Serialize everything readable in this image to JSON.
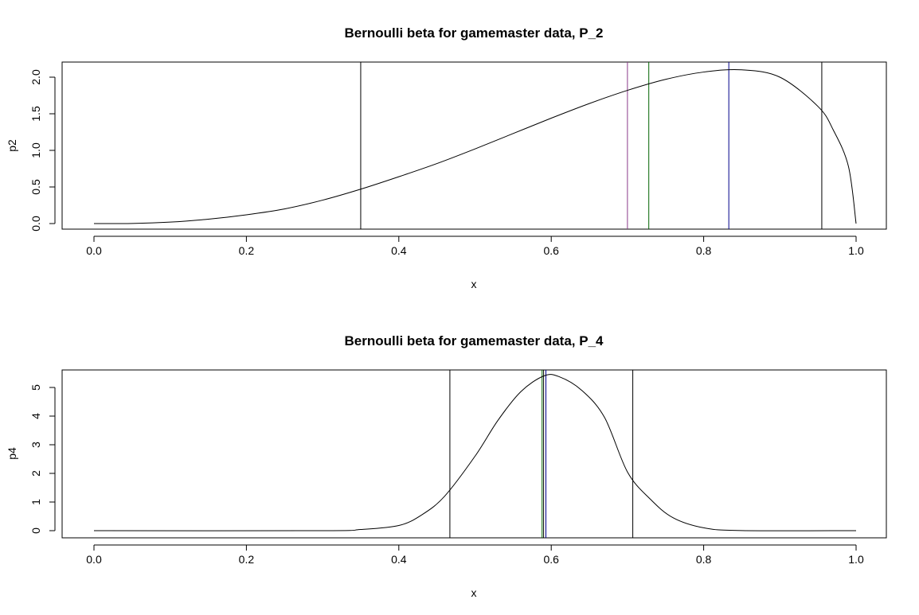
{
  "chart_data": [
    {
      "type": "line",
      "title": "Bernoulli beta for gamemaster data, P_2",
      "xlabel": "x",
      "ylabel": "p2",
      "xlim": [
        0,
        1
      ],
      "ylim": [
        0,
        2.1
      ],
      "x_ticks": [
        "0.0",
        "0.2",
        "0.4",
        "0.6",
        "0.8",
        "1.0"
      ],
      "y_ticks": [
        "0.0",
        "0.5",
        "1.0",
        "1.5",
        "2.0"
      ],
      "grid": false,
      "series": [
        {
          "color": "#000000",
          "x": [
            0,
            0.05,
            0.1,
            0.15,
            0.2,
            0.25,
            0.3,
            0.35,
            0.4,
            0.45,
            0.5,
            0.55,
            0.6,
            0.65,
            0.7,
            0.75,
            0.8,
            0.85,
            0.9,
            0.95,
            0.97,
            0.99,
            1.0
          ],
          "y": [
            0,
            0.002,
            0.02,
            0.06,
            0.12,
            0.2,
            0.32,
            0.47,
            0.64,
            0.82,
            1.02,
            1.23,
            1.44,
            1.64,
            1.82,
            1.97,
            2.07,
            2.1,
            2.0,
            1.6,
            1.28,
            0.78,
            0
          ]
        }
      ],
      "vlines": [
        {
          "x": 0.35,
          "color": "#000000"
        },
        {
          "x": 0.7,
          "color": "#8b3a8b"
        },
        {
          "x": 0.728,
          "color": "#006400"
        },
        {
          "x": 0.833,
          "color": "#00008b"
        },
        {
          "x": 0.955,
          "color": "#000000"
        }
      ]
    },
    {
      "type": "line",
      "title": "Bernoulli beta for gamemaster data, P_4",
      "xlabel": "x",
      "ylabel": "p4",
      "xlim": [
        0,
        1
      ],
      "ylim": [
        0,
        5.4
      ],
      "x_ticks": [
        "0.0",
        "0.2",
        "0.4",
        "0.6",
        "0.8",
        "1.0"
      ],
      "y_ticks": [
        "0",
        "1",
        "2",
        "3",
        "4",
        "5"
      ],
      "grid": false,
      "series": [
        {
          "color": "#000000",
          "x": [
            0,
            0.3,
            0.35,
            0.4,
            0.43,
            0.46,
            0.5,
            0.53,
            0.56,
            0.59,
            0.61,
            0.64,
            0.67,
            0.7,
            0.73,
            0.76,
            0.8,
            0.85,
            1.0
          ],
          "y": [
            0,
            0,
            0.04,
            0.18,
            0.55,
            1.2,
            2.6,
            3.85,
            4.85,
            5.4,
            5.38,
            4.9,
            3.95,
            2.05,
            1.1,
            0.45,
            0.1,
            0.005,
            0
          ]
        }
      ],
      "vlines": [
        {
          "x": 0.467,
          "color": "#000000"
        },
        {
          "x": 0.588,
          "color": "#006400"
        },
        {
          "x": 0.59,
          "color": "#000000"
        },
        {
          "x": 0.593,
          "color": "#00008b"
        },
        {
          "x": 0.707,
          "color": "#000000"
        }
      ]
    }
  ]
}
